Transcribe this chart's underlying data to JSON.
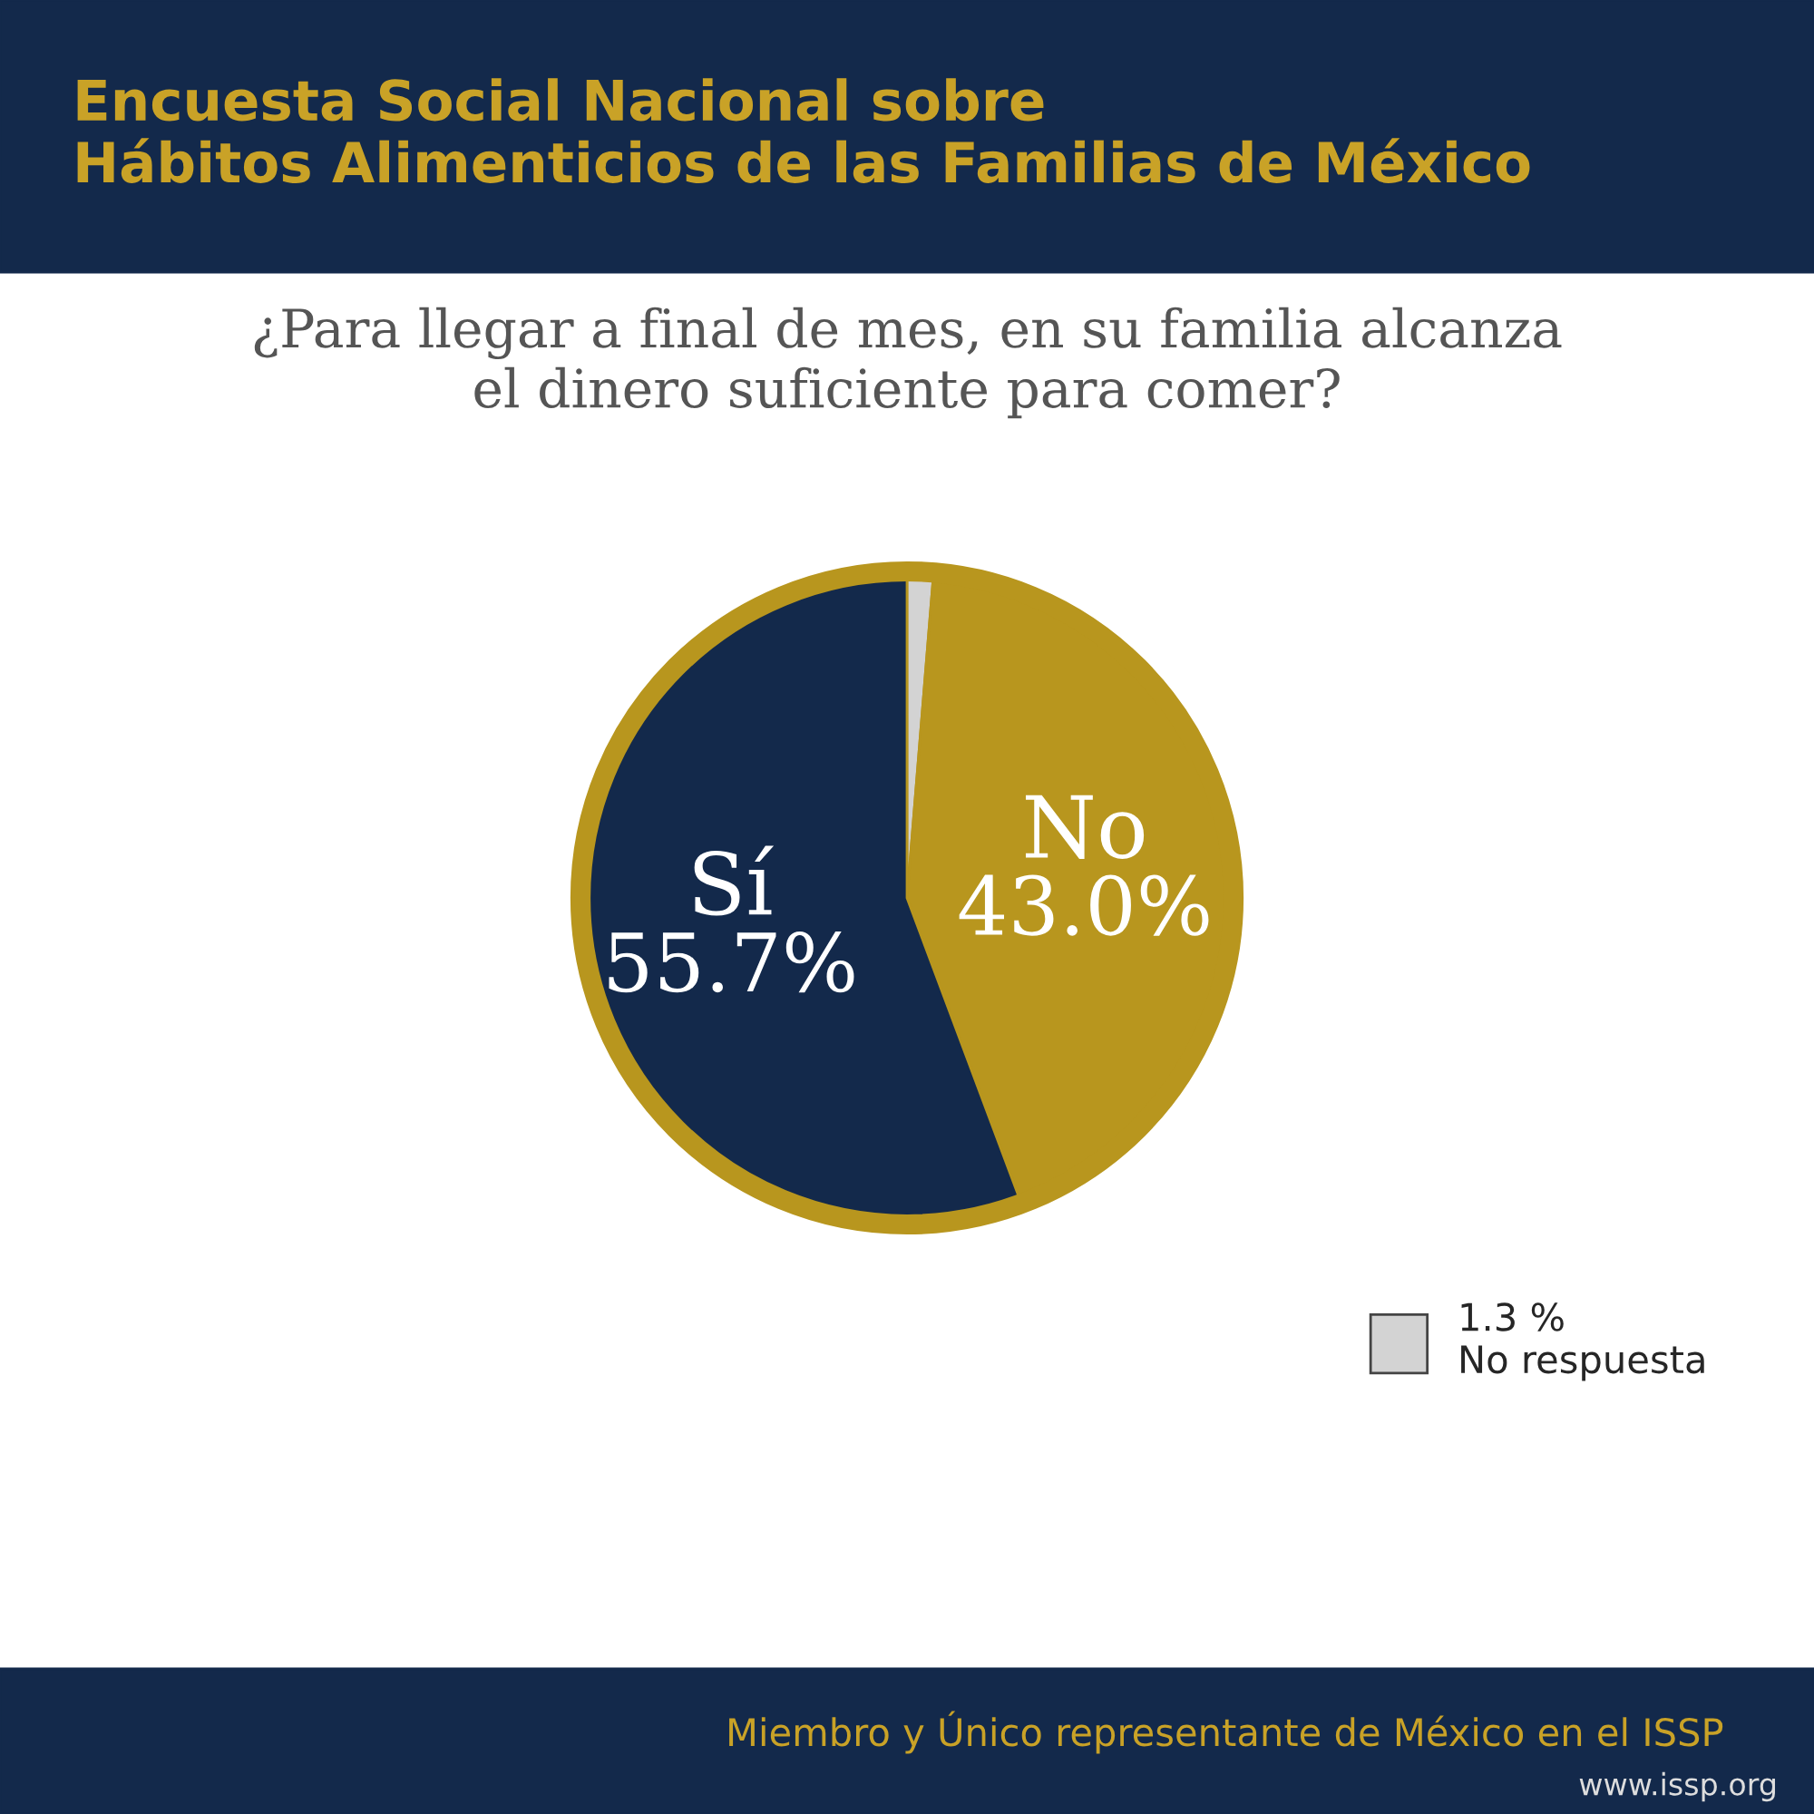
{
  "chart_data": {
    "type": "pie",
    "title": "Encuesta Social Nacional sobre\nHábitos Alimenticios de las Familias de México",
    "subtitle": "¿Para llegar a final de mes, en su familia alcanza\nel dinero suficiente para comer?",
    "categories": [
      "No respuesta",
      "No",
      "Sí"
    ],
    "values": [
      1.3,
      43.0,
      55.7
    ],
    "colors": [
      "#d3d3d3",
      "#b8961e",
      "#13294b"
    ],
    "value_labels": [
      "1.3 %",
      "43.0%",
      "55.7%"
    ],
    "legend": "bottom right",
    "annotations": [
      "Miembro y Único representante de México en el ISSP",
      "www.issp.org"
    ]
  }
}
